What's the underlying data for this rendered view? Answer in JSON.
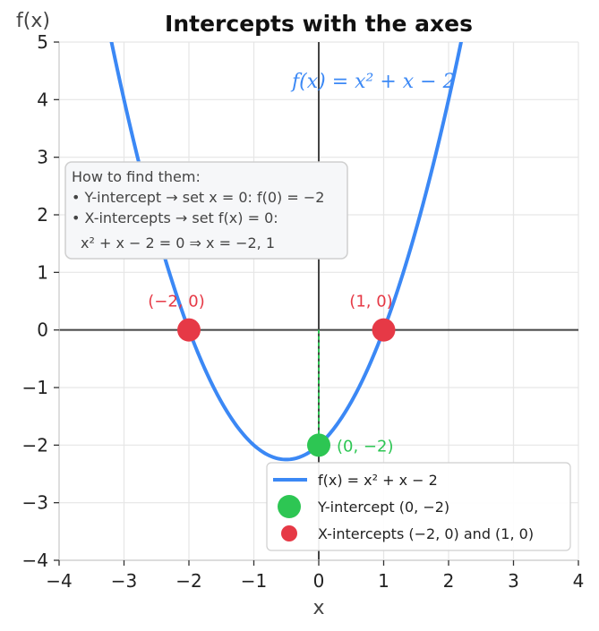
{
  "chart_data": {
    "type": "line",
    "title": "Intercepts with the axes",
    "xlabel": "x",
    "ylabel": "f(x)",
    "xlim": [
      -4,
      4
    ],
    "ylim": [
      -4,
      5
    ],
    "x_ticks": [
      "−4",
      "−3",
      "−2",
      "−1",
      "0",
      "1",
      "2",
      "3",
      "4"
    ],
    "y_ticks": [
      "−4",
      "−3",
      "−2",
      "−1",
      "0",
      "1",
      "2",
      "3",
      "4",
      "5"
    ],
    "grid": true,
    "curve": {
      "expression": "x^2 + x - 2",
      "coefficients": [
        1,
        1,
        -2
      ],
      "label": "f(x) = x² + x − 2",
      "color": "#3b88f5"
    },
    "y_intercept": {
      "x": 0,
      "y": -2,
      "label": "(0, −2)",
      "color": "#2dc653"
    },
    "x_intercepts": [
      {
        "x": -2,
        "y": 0,
        "label": "(−2, 0)"
      },
      {
        "x": 1,
        "y": 0,
        "label": "(1, 0)"
      }
    ],
    "x_intercept_color": "#e63946",
    "info_box": {
      "lines": [
        "How to find them:",
        "• Y-intercept → set x = 0: f(0) = −2",
        "• X-intercepts → set f(x) = 0:",
        "x² + x − 2 = 0 ⇒ x = −2, 1"
      ]
    },
    "legend": {
      "placement": "lower-right",
      "entries": [
        "f(x) = x² + x − 2",
        "Y-intercept (0, −2)",
        "X-intercepts (−2, 0) and (1, 0)"
      ]
    }
  }
}
